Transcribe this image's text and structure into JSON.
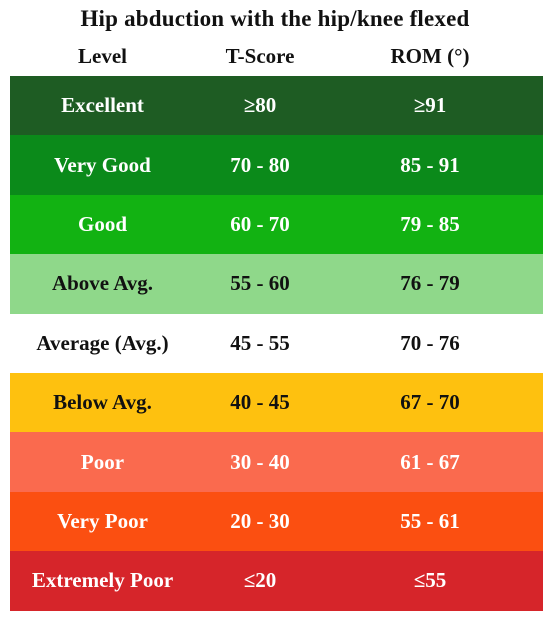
{
  "title": "Hip abduction with the hip/knee flexed",
  "headers": {
    "level": "Level",
    "tscore": "T-Score",
    "rom": "ROM (°)"
  },
  "rows": [
    {
      "level": "Excellent",
      "tscore": "≥80",
      "rom": "≥91",
      "bg": "#1e5c23",
      "fg": "#ffffff"
    },
    {
      "level": "Very Good",
      "tscore": "70  -  80",
      "rom": "85  -  91",
      "bg": "#0b8a1a",
      "fg": "#ffffff"
    },
    {
      "level": "Good",
      "tscore": "60  -  70",
      "rom": "79  -  85",
      "bg": "#12b212",
      "fg": "#ffffff"
    },
    {
      "level": "Above Avg.",
      "tscore": "55  -  60",
      "rom": "76  -  79",
      "bg": "#8fd88a",
      "fg": "#111111"
    },
    {
      "level": "Average (Avg.)",
      "tscore": "45  -  55",
      "rom": "70  -  76",
      "bg": "#ffffff",
      "fg": "#111111"
    },
    {
      "level": "Below Avg.",
      "tscore": "40  -  45",
      "rom": "67  -  70",
      "bg": "#fec10f",
      "fg": "#111111"
    },
    {
      "level": "Poor",
      "tscore": "30  -  40",
      "rom": "61  -  67",
      "bg": "#fa6a4e",
      "fg": "#ffffff"
    },
    {
      "level": "Very Poor",
      "tscore": "20  -  30",
      "rom": "55  -  61",
      "bg": "#fb4f11",
      "fg": "#ffffff"
    },
    {
      "level": "Extremely Poor",
      "tscore": "≤20",
      "rom": "≤55",
      "bg": "#d6252a",
      "fg": "#ffffff"
    }
  ]
}
